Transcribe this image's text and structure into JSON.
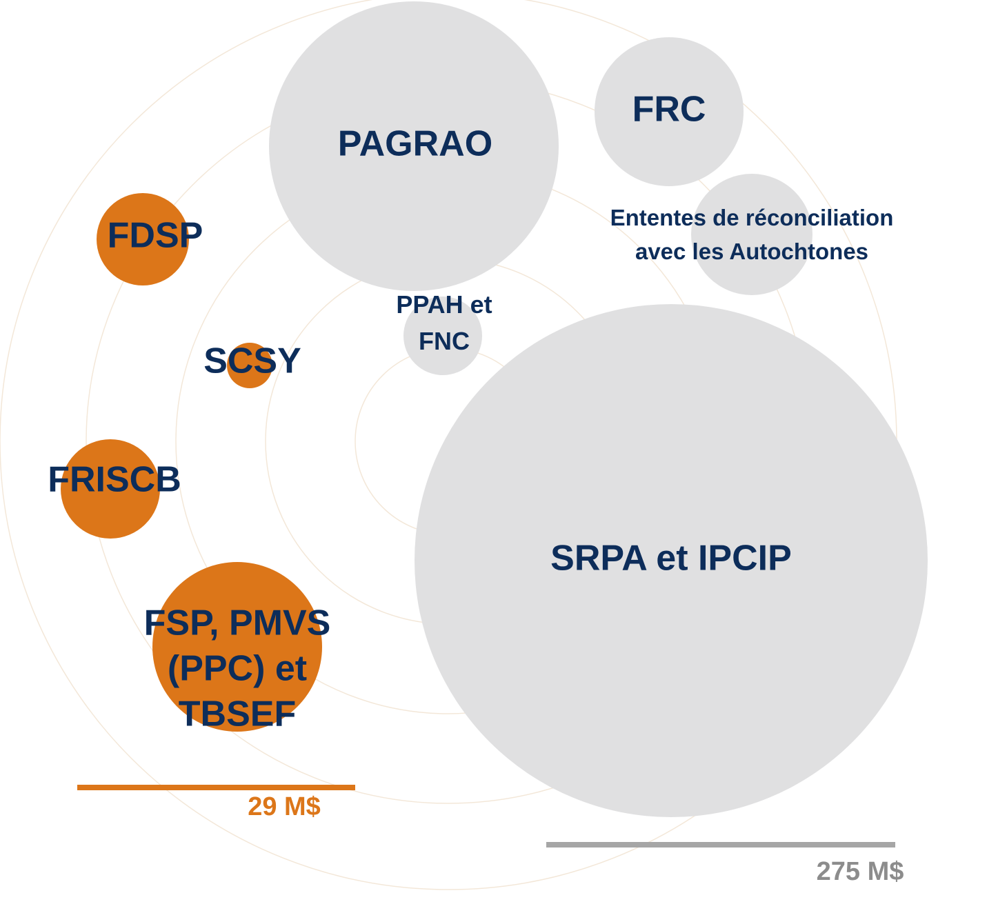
{
  "nodes": [
    {
      "lines": [
        "PAGRAO"
      ],
      "fill": "#e0e0e1"
    },
    {
      "lines": [
        "FRC"
      ],
      "fill": "#e0e0e1"
    },
    {
      "lines": [
        "Ententes de réconciliation",
        "avec les Autochtones"
      ],
      "fill": "#e0e0e1"
    },
    {
      "lines": [
        "PPAH et",
        "FNC"
      ],
      "fill": "#e0e0e1"
    },
    {
      "lines": [
        "SRPA et IPCIP"
      ],
      "fill": "#e0e0e1"
    },
    {
      "lines": [
        "FDSP"
      ],
      "fill": "#dc7619"
    },
    {
      "lines": [
        "SCSY"
      ],
      "fill": "#dc7619"
    },
    {
      "lines": [
        "FRISCB"
      ],
      "fill": "#dc7619"
    },
    {
      "lines": [
        "FSP, PMVS",
        "(PPC) et",
        "TBSEF"
      ],
      "fill": "#dc7619"
    }
  ],
  "scales": [
    {
      "label": "29 M$",
      "color": "#dc7619"
    },
    {
      "label": "275 M$",
      "color": "#a6a6a6"
    }
  ]
}
